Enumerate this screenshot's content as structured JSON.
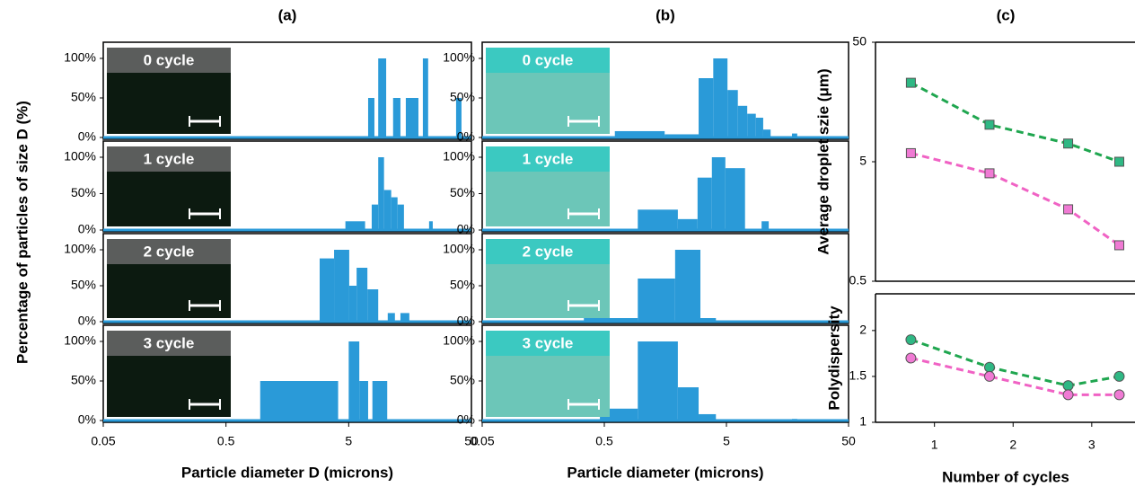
{
  "chart_data": [
    {
      "type": "histogram",
      "title": "(a)",
      "x_label": "Particle diameter D (microns)",
      "y_label": "Percentage of particles of size D (%)",
      "log_x": true,
      "xlim": [
        0.05,
        50
      ],
      "xticks": [
        0.05,
        0.5,
        5,
        50
      ],
      "ylim": [
        0,
        100
      ],
      "yticks": [
        {
          "value": 0,
          "label": "0%"
        },
        {
          "value": 50,
          "label": "50%"
        },
        {
          "value": 100,
          "label": "100%"
        }
      ],
      "color": "#2a9ad8",
      "inset_color": "#0c1a10",
      "panels": [
        {
          "label": "0 cycle",
          "bins": [
            7.2,
            8.1,
            8.7,
            10.1,
            11.5,
            13.2,
            14.6,
            18.5,
            20.1,
            22.2,
            37.5,
            41.5
          ],
          "values": [
            50,
            0,
            100,
            0,
            50,
            0,
            50,
            0,
            100,
            0,
            50
          ]
        },
        {
          "label": "1 cycle",
          "bins": [
            4.7,
            6.8,
            7.7,
            8.7,
            9.7,
            11.1,
            12.5,
            14.1,
            22.6,
            24.2
          ],
          "values": [
            12,
            0,
            35,
            100,
            55,
            45,
            35,
            0,
            12
          ]
        },
        {
          "label": "2 cycle",
          "bins": [
            2.9,
            3.8,
            5.05,
            5.8,
            7.1,
            8.7,
            10.4,
            11.9,
            13.2,
            15.6
          ],
          "values": [
            88,
            100,
            50,
            75,
            45,
            0,
            12,
            0,
            12
          ]
        },
        {
          "label": "3 cycle",
          "bins": [
            0.95,
            4.1,
            5.0,
            6.1,
            7.2,
            7.8,
            10.3
          ],
          "values": [
            50,
            0,
            100,
            50,
            0,
            50
          ]
        }
      ]
    },
    {
      "type": "histogram",
      "title": "(b)",
      "x_label": "Particle diameter (microns)",
      "log_x": true,
      "xlim": [
        0.05,
        50
      ],
      "xticks": [
        0.05,
        0.5,
        5,
        50
      ],
      "ylim": [
        0,
        100
      ],
      "yticks": [
        {
          "value": 0,
          "label": "0%"
        },
        {
          "value": 50,
          "label": "50%"
        },
        {
          "value": 100,
          "label": "100%"
        }
      ],
      "color": "#2a9ad8",
      "inset_color": "#6cc6b8",
      "panels": [
        {
          "label": "0 cycle",
          "bins": [
            0.61,
            1.56,
            2.96,
            3.9,
            5.1,
            6.2,
            7.4,
            8.7,
            10.0,
            11.5,
            17.2,
            19
          ],
          "values": [
            8,
            4,
            75,
            100,
            60,
            40,
            30,
            25,
            10,
            0,
            5
          ]
        },
        {
          "label": "1 cycle",
          "bins": [
            0.94,
            2.0,
            2.9,
            3.8,
            4.9,
            7.1,
            9.7,
            11.1
          ],
          "values": [
            28,
            15,
            72,
            100,
            85,
            0,
            12
          ]
        },
        {
          "label": "2 cycle",
          "bins": [
            0.34,
            0.94,
            1.9,
            3.06,
            4.1
          ],
          "values": [
            5,
            60,
            100,
            5
          ]
        },
        {
          "label": "3 cycle",
          "bins": [
            0.46,
            0.94,
            2.0,
            2.96,
            4.1,
            17.2,
            19
          ],
          "values": [
            15,
            100,
            42,
            8,
            0,
            2
          ]
        }
      ]
    },
    {
      "type": "line",
      "title": "(c)",
      "x_label": "Number of cycles",
      "xlim": [
        0.25,
        3.55
      ],
      "xticks": [
        1,
        2,
        3
      ],
      "x": [
        0.7,
        1.7,
        2.7,
        3.35
      ],
      "plots": [
        {
          "y_label": "Average droplet szie (μm)",
          "log_y": true,
          "ylim": [
            0.5,
            50
          ],
          "yticks": [
            0.5,
            5,
            50
          ],
          "marker": "square",
          "series": [
            {
              "color": "#1fa64f",
              "fill": "#2fb884",
              "values": [
                22.9,
                10.2,
                7.1,
                5.0
              ]
            },
            {
              "color": "#f062c4",
              "fill": "#f07ad4",
              "values": [
                5.9,
                4.0,
                2.0,
                1.0
              ]
            }
          ]
        },
        {
          "y_label": "Polydispersity",
          "log_y": false,
          "ylim": [
            1,
            2.4
          ],
          "yticks": [
            1,
            1.5,
            2
          ],
          "marker": "circle",
          "series": [
            {
              "color": "#1fa64f",
              "fill": "#2fb884",
              "values": [
                1.9,
                1.6,
                1.4,
                1.5
              ]
            },
            {
              "color": "#f062c4",
              "fill": "#f07ad4",
              "values": [
                1.7,
                1.5,
                1.3,
                1.3
              ]
            }
          ]
        }
      ]
    }
  ]
}
